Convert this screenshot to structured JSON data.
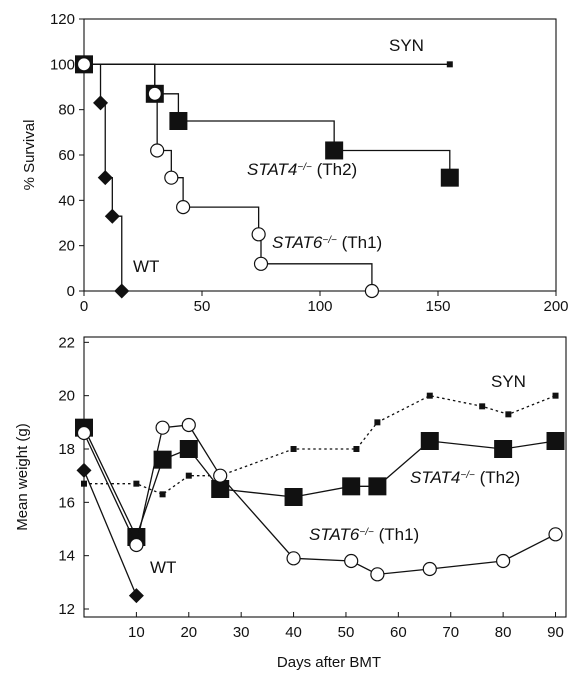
{
  "colors": {
    "ink": "#111111",
    "background": "#ffffff"
  },
  "chart_data": [
    {
      "type": "line",
      "title": "",
      "xlabel": "",
      "ylabel": "% Survival",
      "xlim": [
        0,
        200
      ],
      "ylim": [
        0,
        120
      ],
      "xticks": [
        0,
        50,
        100,
        150,
        200
      ],
      "yticks": [
        0,
        20,
        40,
        60,
        80,
        100,
        120
      ],
      "grid": false,
      "step": true,
      "series": [
        {
          "key": "syn",
          "marker": "small-square",
          "x": [
            0,
            155
          ],
          "y": [
            100,
            100
          ]
        },
        {
          "key": "wt",
          "marker": "diamond",
          "x": [
            0,
            5,
            7,
            9,
            12,
            15,
            16
          ],
          "y": [
            100,
            100,
            83,
            50,
            33,
            33,
            0
          ]
        },
        {
          "key": "stat4",
          "marker": "large-square",
          "x": [
            0,
            30,
            30,
            35,
            38,
            40,
            105,
            106,
            154,
            155
          ],
          "y": [
            100,
            100,
            87,
            87,
            87,
            75,
            75,
            62,
            62,
            50
          ]
        },
        {
          "key": "stat6",
          "marker": "circle",
          "x": [
            0,
            27,
            30,
            31,
            33,
            37,
            39,
            42,
            74,
            75,
            121,
            122
          ],
          "y": [
            100,
            100,
            87,
            62,
            62,
            50,
            50,
            37,
            25,
            12,
            12,
            0
          ]
        }
      ],
      "annotations": [
        {
          "key": "syn",
          "parts": [
            {
              "text": "SYN",
              "italic": false
            }
          ]
        },
        {
          "key": "wt",
          "parts": [
            {
              "text": "WT",
              "italic": false
            }
          ]
        },
        {
          "key": "stat4",
          "parts": [
            {
              "text": "STAT4",
              "italic": true
            },
            {
              "text": "−/−",
              "sup": true,
              "italic": true
            },
            {
              "text": " (Th2)",
              "italic": false
            }
          ]
        },
        {
          "key": "stat6",
          "parts": [
            {
              "text": "STAT6",
              "italic": true
            },
            {
              "text": "−/−",
              "sup": true,
              "italic": true
            },
            {
              "text": " (Th1)",
              "italic": false
            }
          ]
        }
      ]
    },
    {
      "type": "line",
      "title": "",
      "xlabel": "Days after BMT",
      "ylabel": "Mean weight (g)",
      "xlim": [
        0,
        92
      ],
      "ylim": [
        11.7,
        22.2
      ],
      "xticks": [
        10,
        20,
        30,
        40,
        50,
        60,
        70,
        80,
        90
      ],
      "yticks": [
        12,
        14,
        16,
        18,
        20,
        22
      ],
      "grid": false,
      "series": [
        {
          "key": "syn",
          "marker": "small-square",
          "dash": true,
          "x": [
            0,
            10,
            15,
            20,
            26,
            40,
            52,
            56,
            66,
            76,
            81,
            90
          ],
          "y": [
            16.7,
            16.7,
            16.3,
            17.0,
            17.0,
            18.0,
            18.0,
            19.0,
            20.0,
            19.6,
            19.3,
            20.0
          ]
        },
        {
          "key": "stat4",
          "marker": "large-square",
          "x": [
            0,
            10,
            15,
            20,
            26,
            40,
            51,
            56,
            66,
            80,
            90
          ],
          "y": [
            18.8,
            14.7,
            17.6,
            18.0,
            16.5,
            16.2,
            16.6,
            16.6,
            18.3,
            18.0,
            18.3
          ]
        },
        {
          "key": "stat6",
          "marker": "circle",
          "x": [
            0,
            10,
            15,
            20,
            26,
            40,
            51,
            56,
            66,
            80,
            90
          ],
          "y": [
            18.6,
            14.4,
            18.8,
            18.9,
            17.0,
            13.9,
            13.8,
            13.3,
            13.5,
            13.8,
            14.8
          ]
        },
        {
          "key": "wt",
          "marker": "diamond",
          "x": [
            0,
            10
          ],
          "y": [
            17.2,
            12.5
          ]
        }
      ],
      "annotations": [
        {
          "key": "syn",
          "parts": [
            {
              "text": "SYN",
              "italic": false
            }
          ]
        },
        {
          "key": "wt",
          "parts": [
            {
              "text": "WT",
              "italic": false
            }
          ]
        },
        {
          "key": "stat4",
          "parts": [
            {
              "text": "STAT4",
              "italic": true
            },
            {
              "text": "−/−",
              "sup": true,
              "italic": true
            },
            {
              "text": " (Th2)",
              "italic": false
            }
          ]
        },
        {
          "key": "stat6",
          "parts": [
            {
              "text": "STAT6",
              "italic": true
            },
            {
              "text": "−/−",
              "sup": true,
              "italic": true
            },
            {
              "text": " (Th1)",
              "italic": false
            }
          ]
        }
      ]
    }
  ]
}
